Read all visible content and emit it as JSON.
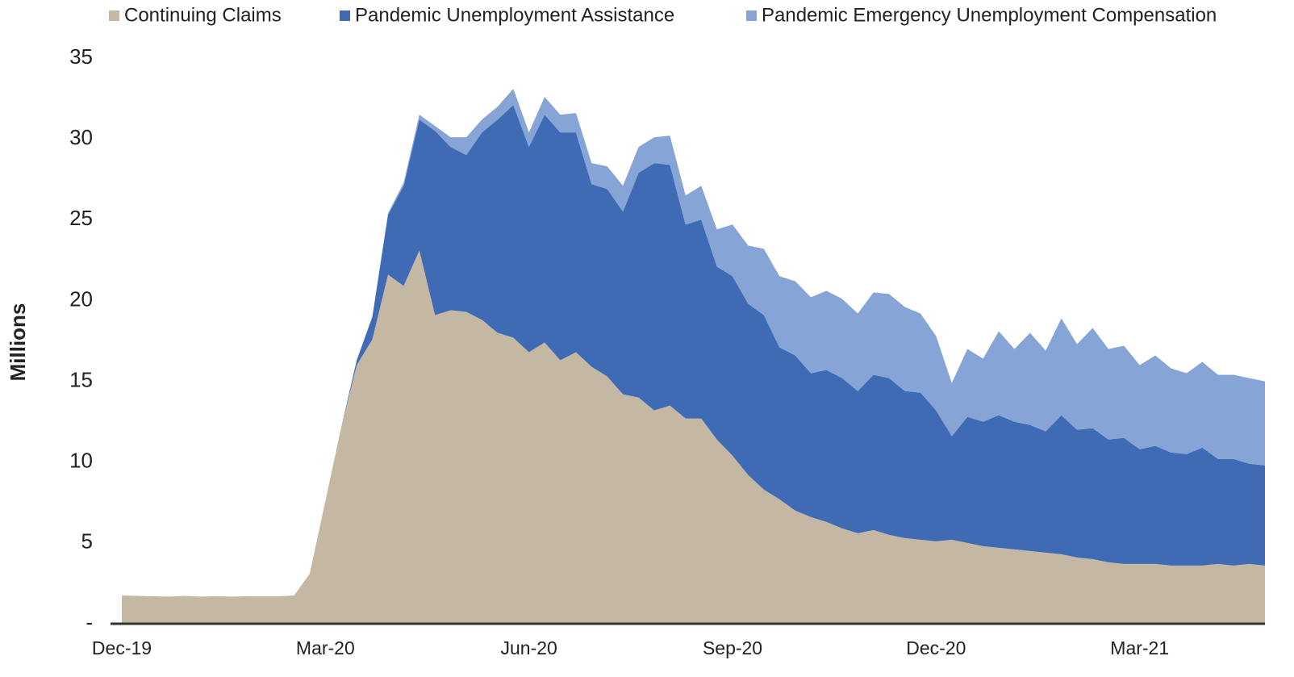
{
  "chart_data": {
    "type": "stacked_area",
    "y_label": "Millions",
    "categories": [
      "Dec-19",
      null,
      null,
      null,
      null,
      null,
      null,
      null,
      null,
      null,
      null,
      null,
      null,
      "Mar-20",
      null,
      null,
      null,
      null,
      null,
      null,
      null,
      null,
      null,
      null,
      null,
      null,
      "Jun-20",
      null,
      null,
      null,
      null,
      null,
      null,
      null,
      null,
      null,
      null,
      null,
      null,
      "Sep-20",
      null,
      null,
      null,
      null,
      null,
      null,
      null,
      null,
      null,
      null,
      null,
      null,
      "Dec-20",
      null,
      null,
      null,
      null,
      null,
      null,
      null,
      null,
      null,
      null,
      null,
      null,
      "Mar-21",
      null,
      null,
      null,
      null,
      null,
      null,
      null,
      null
    ],
    "series": [
      {
        "name": "Continuing Claims",
        "color": "#c5b8a3",
        "values": [
          1.75,
          1.72,
          1.7,
          1.68,
          1.72,
          1.68,
          1.7,
          1.68,
          1.7,
          1.7,
          1.7,
          1.75,
          3.1,
          7.6,
          12.1,
          16,
          17.6,
          21.6,
          20.9,
          23.1,
          19.1,
          19.4,
          19.3,
          18.8,
          18,
          17.7,
          16.8,
          17.4,
          16.3,
          16.8,
          15.9,
          15.3,
          14.2,
          14,
          13.2,
          13.5,
          12.7,
          12.7,
          11.4,
          10.4,
          9.2,
          8.3,
          7.7,
          7,
          6.6,
          6.3,
          5.9,
          5.6,
          5.8,
          5.5,
          5.3,
          5.2,
          5.1,
          5.2,
          5,
          4.8,
          4.7,
          4.6,
          4.5,
          4.4,
          4.3,
          4.1,
          4,
          3.8,
          3.7,
          3.7,
          3.7,
          3.6,
          3.6,
          3.6,
          3.7,
          3.6,
          3.7,
          3.6
        ]
      },
      {
        "name": "Pandemic Unemployment Assistance",
        "color": "#3e6bb4",
        "values": [
          0,
          0,
          0,
          0,
          0,
          0,
          0,
          0,
          0,
          0,
          0,
          0,
          0,
          0,
          0,
          0.3,
          1.4,
          3.7,
          6.2,
          8.1,
          11.4,
          10.1,
          9.7,
          11.6,
          13.2,
          14.4,
          12.7,
          14.1,
          14.1,
          13.6,
          11.3,
          11.6,
          11.3,
          13.9,
          15.3,
          14.9,
          12,
          12.3,
          10.7,
          11.1,
          10.6,
          10.8,
          9.4,
          9.6,
          8.9,
          9.4,
          9.3,
          8.8,
          9.6,
          9.7,
          9.1,
          9.1,
          8.1,
          6.4,
          7.8,
          7.7,
          8.2,
          7.9,
          7.8,
          7.5,
          8.6,
          7.9,
          8.1,
          7.6,
          7.8,
          7.1,
          7.3,
          7,
          6.9,
          7.3,
          6.5,
          6.6,
          6.2,
          6.2
        ]
      },
      {
        "name": "Pandemic Emergency Unemployment Compensation",
        "color": "#86a5d6",
        "values": [
          0,
          0,
          0,
          0,
          0,
          0,
          0,
          0,
          0,
          0,
          0,
          0,
          0,
          0,
          0,
          0,
          0,
          0.1,
          0.2,
          0.3,
          0.3,
          0.6,
          1.1,
          0.8,
          0.8,
          1,
          0.9,
          1.1,
          1.1,
          1.2,
          1.3,
          1.4,
          1.6,
          1.6,
          1.6,
          1.8,
          1.8,
          2.1,
          2.3,
          3.2,
          3.6,
          4.1,
          4.4,
          4.6,
          4.7,
          4.9,
          4.9,
          4.8,
          5.1,
          5.2,
          5.2,
          4.9,
          4.6,
          3.3,
          4.2,
          3.9,
          5.2,
          4.5,
          5.7,
          5,
          6,
          5.3,
          6.2,
          5.6,
          5.7,
          5.2,
          5.6,
          5.2,
          5,
          5.3,
          5.2,
          5.2,
          5.3,
          5.2
        ]
      }
    ],
    "ylim": [
      0,
      35
    ],
    "yticks": [
      {
        "value": 0,
        "label": "-"
      },
      5,
      10,
      15,
      20,
      25,
      30,
      35
    ],
    "grid": false,
    "legend": "top"
  }
}
